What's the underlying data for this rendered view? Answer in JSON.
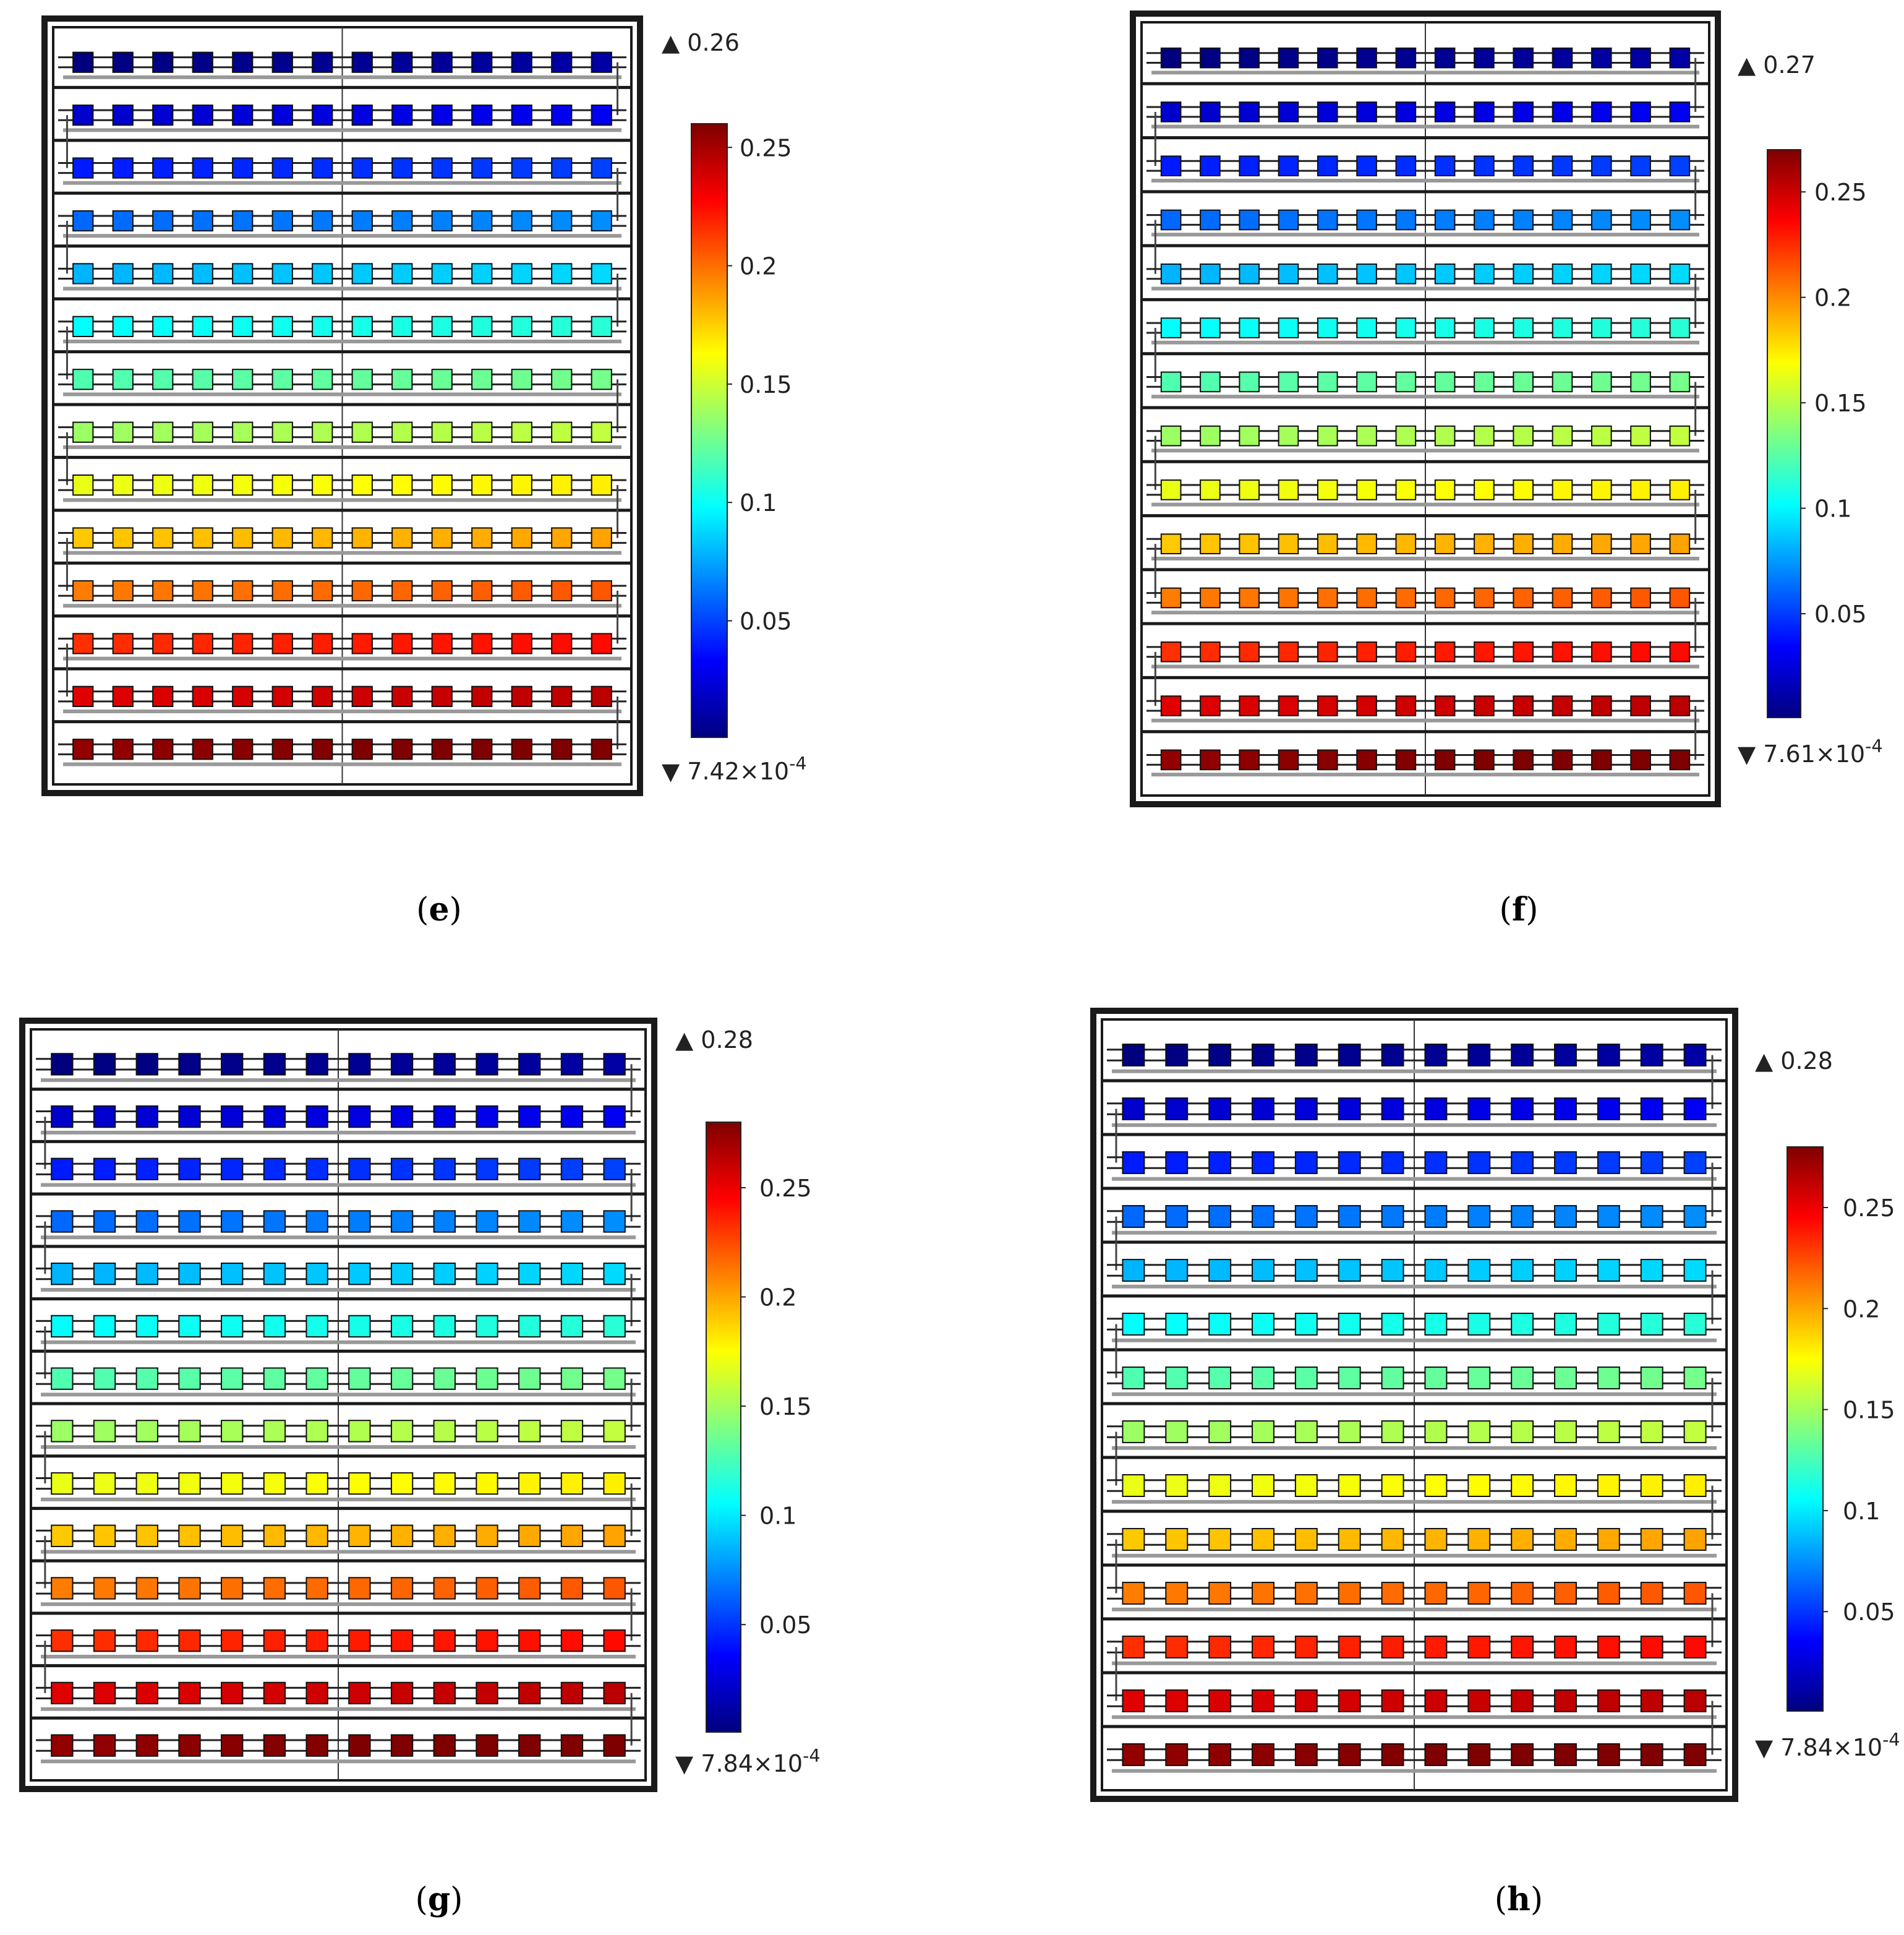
{
  "colormap": [
    "#00007f",
    "#0000ff",
    "#0080ff",
    "#00ffff",
    "#80ff80",
    "#ffff00",
    "#ff8000",
    "#ff0000",
    "#7f0000"
  ],
  "frame_color": "#1a1a1a",
  "guide_color": "#999999",
  "panels": [
    {
      "id": "e",
      "caption": "e",
      "max_label": "0.26",
      "min_label": "7.42",
      "min_exp": "-4",
      "range": [
        0.000742,
        0.26
      ],
      "colorbar_ticks": [
        {
          "value": 0.25,
          "label": "0.25"
        },
        {
          "value": 0.2,
          "label": "0.2"
        },
        {
          "value": 0.15,
          "label": "0.15"
        },
        {
          "value": 0.1,
          "label": "0.1"
        },
        {
          "value": 0.05,
          "label": "0.05"
        }
      ],
      "rows": 14,
      "cols": 14
    },
    {
      "id": "f",
      "caption": "f",
      "max_label": "0.27",
      "min_label": "7.61",
      "min_exp": "-4",
      "range": [
        0.000761,
        0.27
      ],
      "colorbar_ticks": [
        {
          "value": 0.25,
          "label": "0.25"
        },
        {
          "value": 0.2,
          "label": "0.2"
        },
        {
          "value": 0.15,
          "label": "0.15"
        },
        {
          "value": 0.1,
          "label": "0.1"
        },
        {
          "value": 0.05,
          "label": "0.05"
        }
      ],
      "rows": 14,
      "cols": 14
    },
    {
      "id": "g",
      "caption": "g",
      "max_label": "0.28",
      "min_label": "7.84",
      "min_exp": "-4",
      "range": [
        0.000784,
        0.28
      ],
      "colorbar_ticks": [
        {
          "value": 0.25,
          "label": "0.25"
        },
        {
          "value": 0.2,
          "label": "0.2"
        },
        {
          "value": 0.15,
          "label": "0.15"
        },
        {
          "value": 0.1,
          "label": "0.1"
        },
        {
          "value": 0.05,
          "label": "0.05"
        }
      ],
      "rows": 14,
      "cols": 14
    },
    {
      "id": "h",
      "caption": "h",
      "max_label": "0.28",
      "min_label": "7.84",
      "min_exp": "-4",
      "range": [
        0.000784,
        0.28
      ],
      "colorbar_ticks": [
        {
          "value": 0.25,
          "label": "0.25"
        },
        {
          "value": 0.2,
          "label": "0.2"
        },
        {
          "value": 0.15,
          "label": "0.15"
        },
        {
          "value": 0.1,
          "label": "0.1"
        },
        {
          "value": 0.05,
          "label": "0.05"
        }
      ],
      "rows": 14,
      "cols": 14
    }
  ]
}
